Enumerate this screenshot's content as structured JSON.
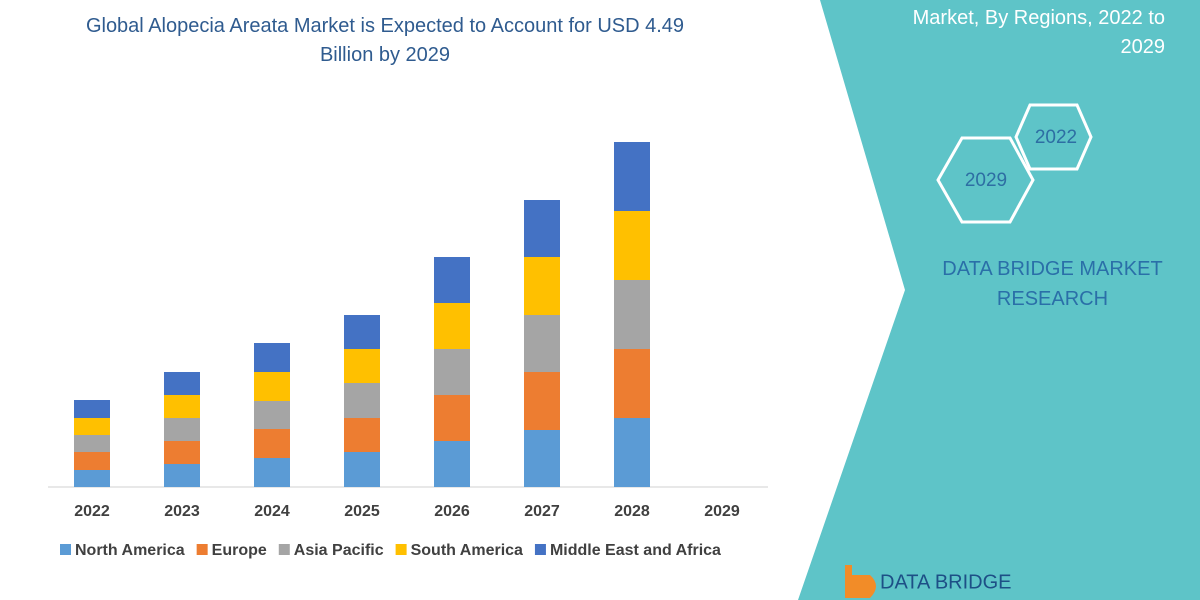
{
  "chart_data": {
    "type": "stacked_bar",
    "title": "Global Alopecia Areata Market is Expected to Account for USD 4.49 Billion by 2029",
    "categories": [
      "2022",
      "2023",
      "2024",
      "2025",
      "2026",
      "2027",
      "2028",
      "2029"
    ],
    "series": [
      {
        "name": "North America",
        "color": "#5b9bd5",
        "values": [
          17,
          23,
          29,
          35,
          46,
          57,
          69,
          null
        ]
      },
      {
        "name": "Europe",
        "color": "#ed7d31",
        "values": [
          18,
          23,
          29,
          34,
          46,
          58,
          69,
          null
        ]
      },
      {
        "name": "Asia Pacific",
        "color": "#a5a5a5",
        "values": [
          17,
          23,
          28,
          35,
          46,
          57,
          69,
          null
        ]
      },
      {
        "name": "South America",
        "color": "#ffc000",
        "values": [
          17,
          23,
          29,
          34,
          46,
          58,
          69,
          null
        ]
      },
      {
        "name": "Middle East and Africa",
        "color": "#4472c4",
        "values": [
          18,
          23,
          29,
          34,
          46,
          57,
          69,
          null
        ]
      }
    ],
    "ylim": [
      0,
      345
    ]
  },
  "panel": {
    "heading": "Market, By Regions, 2022 to 2029",
    "badges": [
      "2022",
      "2029"
    ],
    "brand": "DATA BRIDGE MARKET RESEARCH",
    "logo": "DATA BRIDGE"
  }
}
